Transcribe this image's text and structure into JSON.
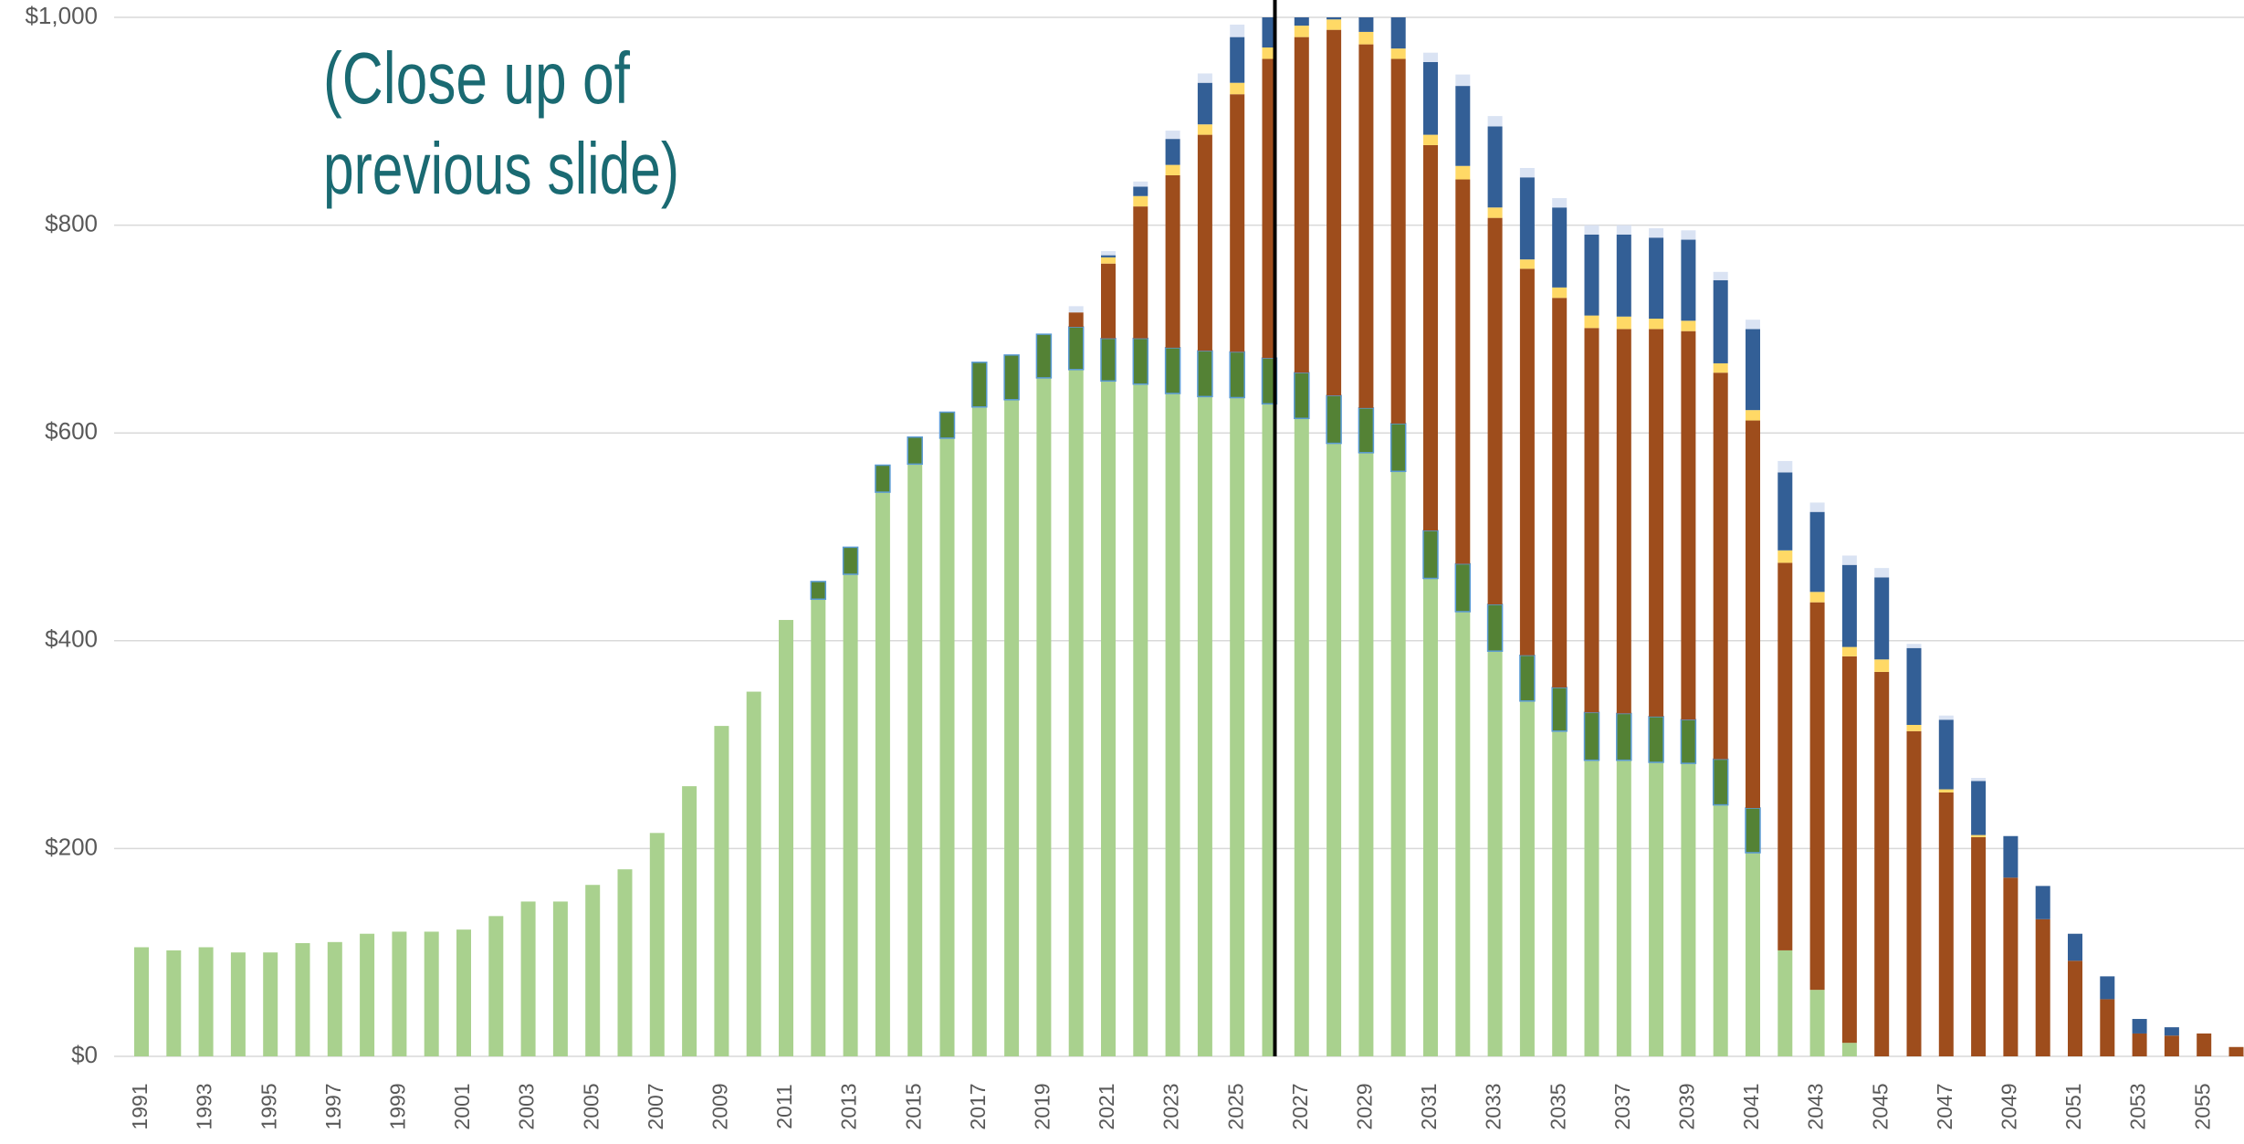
{
  "chart_data": {
    "type": "stacked_bar",
    "annotation": [
      "(Close up of",
      "previous slide)"
    ],
    "categories": [
      "1991",
      null,
      "1993",
      null,
      "1995",
      null,
      "1997",
      null,
      "1999",
      null,
      "2001",
      null,
      "2003",
      null,
      "2005",
      null,
      "2007",
      null,
      "2009",
      null,
      "2011",
      null,
      "2013",
      null,
      "2015",
      null,
      "2017",
      null,
      "2019",
      null,
      "2021",
      null,
      "2023",
      null,
      "2025",
      null,
      "2027",
      null,
      "2029",
      null,
      "2031",
      null,
      "2033",
      null,
      "2035",
      null,
      "2037",
      null,
      "2039",
      null,
      "2041",
      null,
      "2043",
      null,
      "2045",
      null,
      "2047",
      null,
      "2049",
      null,
      "2051",
      null,
      "2053",
      null,
      "2055",
      null
    ],
    "series": [
      {
        "color": "#a9d18e",
        "values": [
          105,
          102,
          105,
          100,
          100,
          109,
          110,
          118,
          120,
          120,
          122,
          135,
          149,
          149,
          165,
          180,
          215,
          260,
          318,
          351,
          420,
          440,
          464,
          543,
          570,
          595,
          625,
          632,
          653,
          661,
          650,
          647,
          638,
          635,
          634,
          628,
          614,
          590,
          581,
          563,
          460,
          428,
          390,
          342,
          313,
          285,
          285,
          283,
          282,
          242,
          196,
          102,
          64,
          13,
          0,
          0,
          0,
          0,
          0,
          0,
          0,
          0,
          0,
          0,
          0,
          0
        ]
      },
      {
        "color": "#548235",
        "stroke": "#5b9bd5",
        "values": [
          0,
          0,
          0,
          0,
          0,
          0,
          0,
          0,
          0,
          0,
          0,
          0,
          0,
          0,
          0,
          0,
          0,
          0,
          0,
          0,
          0,
          17,
          26,
          26,
          26,
          25,
          43,
          43,
          42,
          41,
          41,
          44,
          44,
          44,
          44,
          44,
          44,
          46,
          43,
          46,
          46,
          46,
          45,
          44,
          42,
          46,
          45,
          44,
          42,
          44,
          43,
          0,
          0,
          0,
          0,
          0,
          0,
          0,
          0,
          0,
          0,
          0,
          0,
          0,
          0,
          0
        ]
      },
      {
        "color": "#9e4d1c",
        "values": [
          0,
          0,
          0,
          0,
          0,
          0,
          0,
          0,
          0,
          0,
          0,
          0,
          0,
          0,
          0,
          0,
          0,
          0,
          0,
          0,
          0,
          0,
          0,
          0,
          0,
          0,
          0,
          0,
          0,
          14,
          72,
          127,
          166,
          208,
          248,
          288,
          323,
          352,
          350,
          351,
          371,
          370,
          372,
          372,
          375,
          370,
          370,
          373,
          374,
          372,
          373,
          373,
          373,
          372,
          370,
          313,
          254,
          211,
          172,
          132,
          92,
          55,
          22,
          20,
          22,
          9
        ]
      },
      {
        "color": "#ffd966",
        "values": [
          0,
          0,
          0,
          0,
          0,
          0,
          0,
          0,
          0,
          0,
          0,
          0,
          0,
          0,
          0,
          0,
          0,
          0,
          0,
          0,
          0,
          0,
          0,
          0,
          0,
          0,
          0,
          0,
          0,
          0,
          6,
          10,
          10,
          10,
          11,
          11,
          11,
          10,
          12,
          10,
          10,
          13,
          10,
          9,
          10,
          12,
          12,
          10,
          10,
          9,
          10,
          12,
          10,
          9,
          12,
          6,
          3,
          2,
          0,
          0,
          0,
          0,
          0,
          0,
          0,
          0
        ]
      },
      {
        "color": "#335f96",
        "values": [
          0,
          0,
          0,
          0,
          0,
          0,
          0,
          0,
          0,
          0,
          0,
          0,
          0,
          0,
          0,
          0,
          0,
          0,
          0,
          0,
          0,
          0,
          0,
          0,
          0,
          0,
          0,
          0,
          0,
          0,
          2,
          9,
          25,
          40,
          44,
          59,
          60,
          60,
          55,
          40,
          70,
          77,
          78,
          79,
          77,
          78,
          79,
          78,
          78,
          80,
          78,
          75,
          77,
          79,
          79,
          74,
          67,
          52,
          40,
          32,
          26,
          22,
          14,
          8,
          0,
          0
        ]
      },
      {
        "color": "#dae3f3",
        "values": [
          0,
          0,
          0,
          0,
          0,
          0,
          0,
          0,
          0,
          0,
          0,
          0,
          0,
          0,
          0,
          0,
          0,
          0,
          0,
          0,
          0,
          0,
          0,
          0,
          0,
          0,
          0,
          0,
          0,
          6,
          4,
          5,
          8,
          9,
          12,
          12,
          12,
          12,
          12,
          10,
          9,
          11,
          10,
          9,
          9,
          9,
          9,
          9,
          9,
          8,
          9,
          11,
          9,
          9,
          9,
          4,
          4,
          3,
          0,
          0,
          0,
          0,
          0,
          0,
          0,
          0
        ]
      }
    ],
    "ylim": [
      0,
      1000
    ],
    "yticks": [
      {
        "value": 0,
        "label": "$0"
      },
      {
        "value": 200,
        "label": "$200"
      },
      {
        "value": 400,
        "label": "$400"
      },
      {
        "value": 600,
        "label": "$600"
      },
      {
        "value": 800,
        "label": "$800"
      },
      {
        "value": 1000,
        "label": "$1,000"
      }
    ],
    "grid": true
  }
}
